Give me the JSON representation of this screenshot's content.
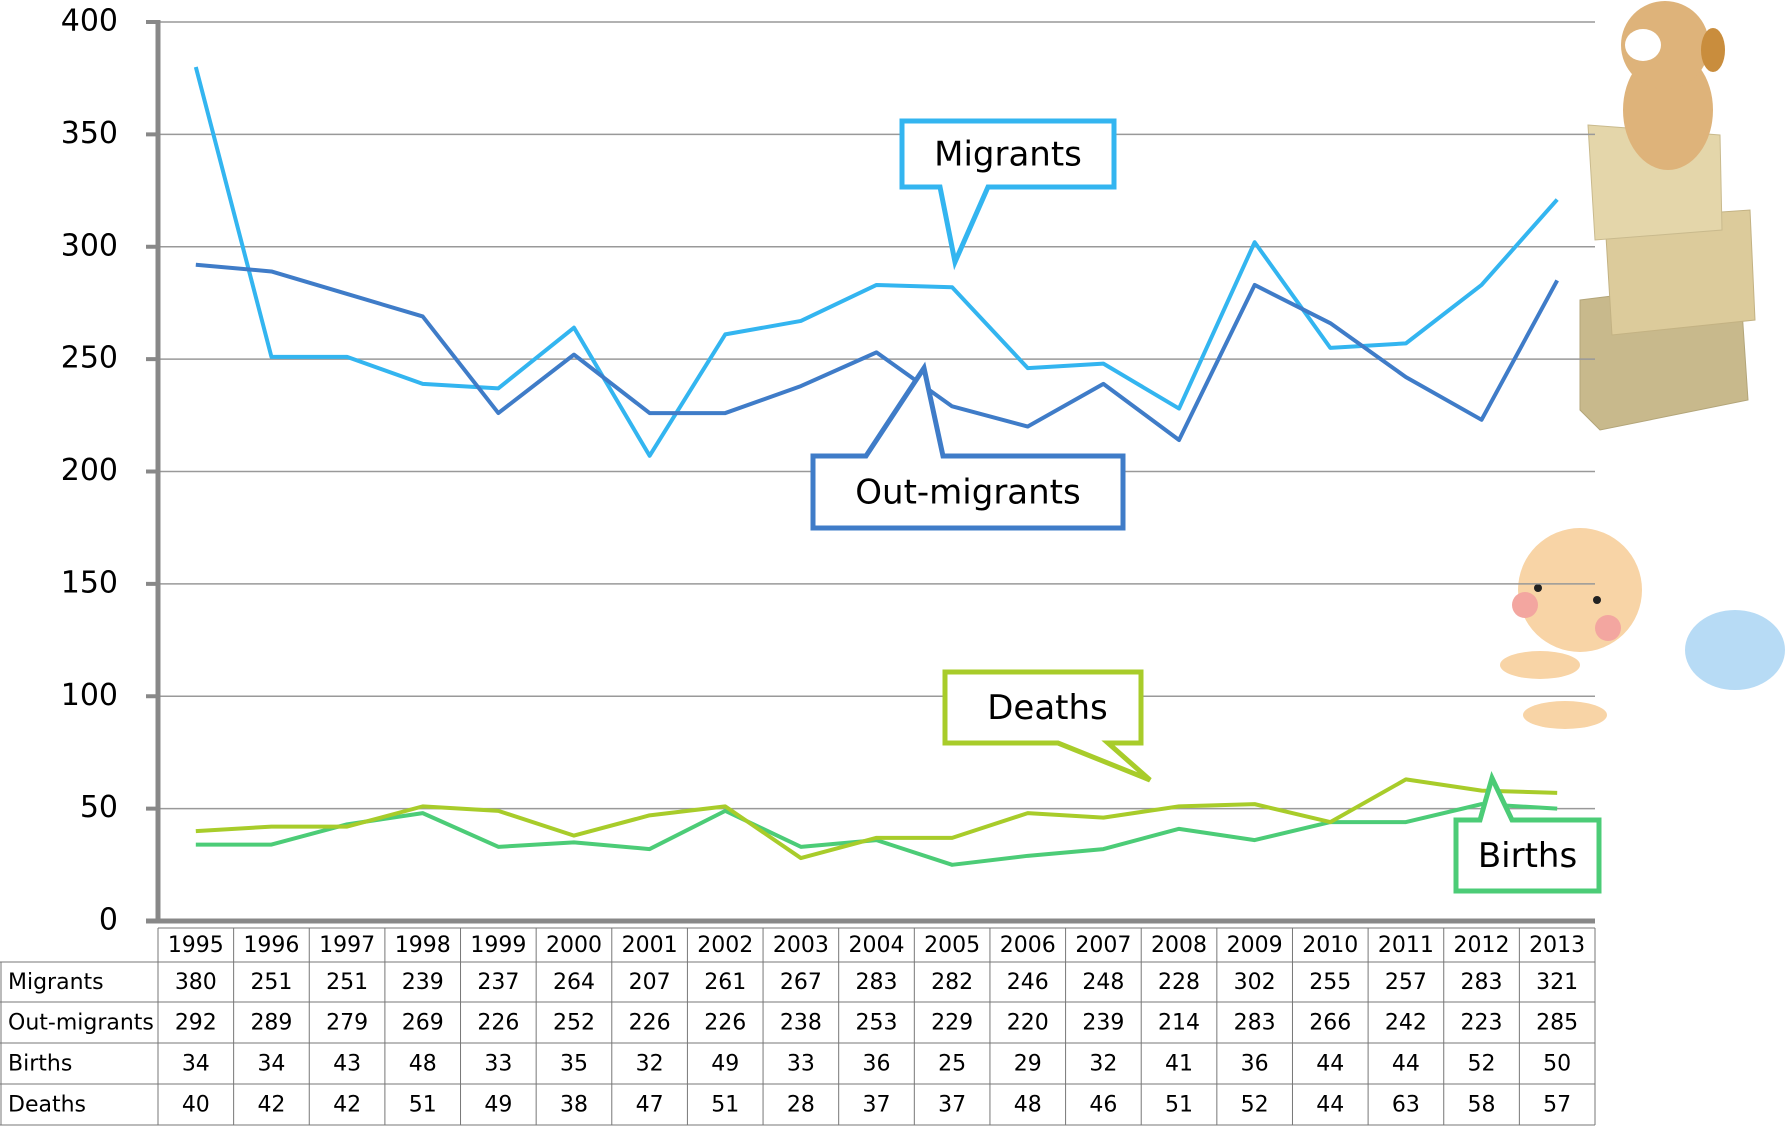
{
  "chart_data": {
    "type": "line",
    "categories": [
      "1995",
      "1996",
      "1997",
      "1998",
      "1999",
      "2000",
      "2001",
      "2002",
      "2003",
      "2004",
      "2005",
      "2006",
      "2007",
      "2008",
      "2009",
      "2010",
      "2011",
      "2012",
      "2013"
    ],
    "series": [
      {
        "name": "Migrants",
        "color": "#33b5f0",
        "values": [
          380,
          251,
          251,
          239,
          237,
          264,
          207,
          261,
          267,
          283,
          282,
          246,
          248,
          228,
          302,
          255,
          257,
          283,
          321
        ]
      },
      {
        "name": "Out-migrants",
        "color": "#3f7cc8",
        "values": [
          292,
          289,
          279,
          269,
          226,
          252,
          226,
          226,
          238,
          253,
          229,
          220,
          239,
          214,
          283,
          266,
          242,
          223,
          285
        ]
      },
      {
        "name": "Births",
        "color": "#4ccc77",
        "values": [
          34,
          34,
          43,
          48,
          33,
          35,
          32,
          49,
          33,
          36,
          25,
          29,
          32,
          41,
          36,
          44,
          44,
          52,
          50
        ]
      },
      {
        "name": "Deaths",
        "color": "#a8cc2a",
        "values": [
          40,
          42,
          42,
          51,
          49,
          38,
          47,
          51,
          28,
          37,
          37,
          48,
          46,
          51,
          52,
          44,
          63,
          58,
          57
        ]
      }
    ],
    "ylim": [
      0,
      400
    ],
    "yticks": [
      0,
      50,
      100,
      150,
      200,
      250,
      300,
      350,
      400
    ],
    "grid": true
  }
}
